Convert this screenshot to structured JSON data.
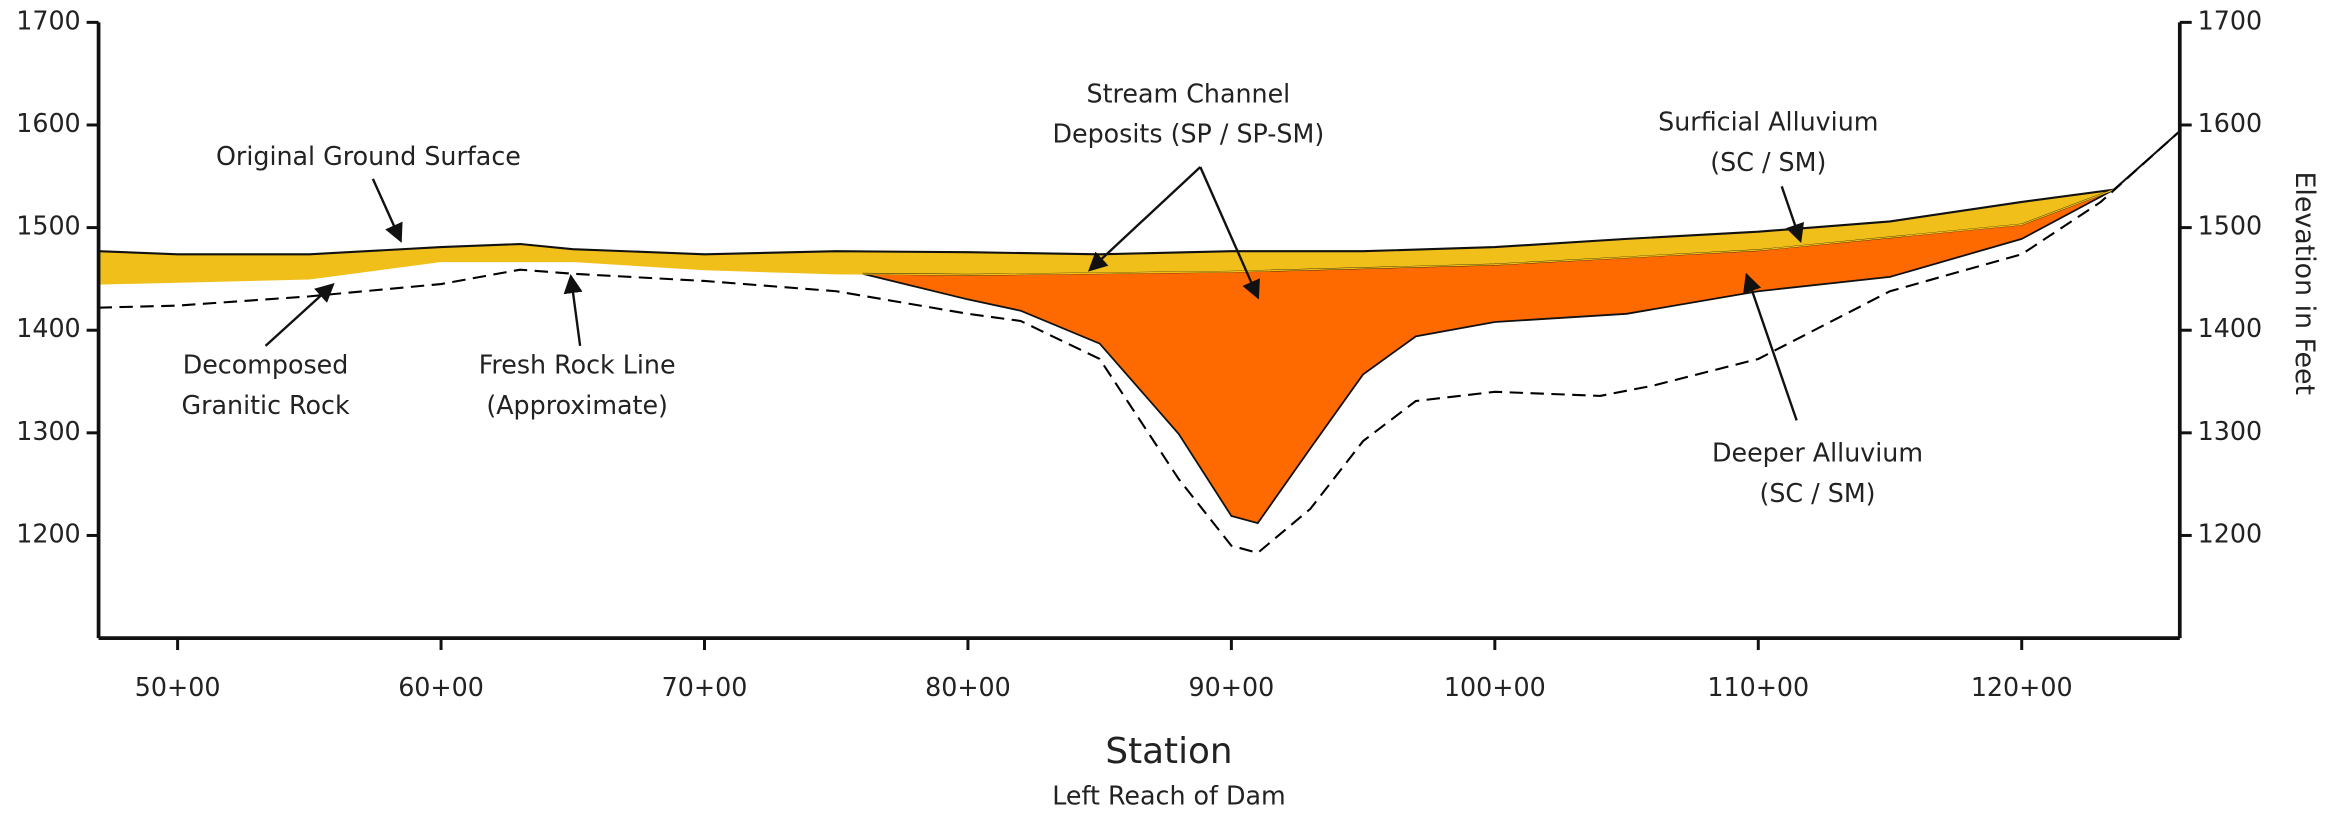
{
  "chart_data": {
    "type": "area",
    "x_label": "Station",
    "x_sublabel": "Left Reach of Dam",
    "y2_label": "Elevation in Feet",
    "xlim": [
      4700,
      12600
    ],
    "xticks": [
      {
        "value": 5000,
        "label": "50+00"
      },
      {
        "value": 6000,
        "label": "60+00"
      },
      {
        "value": 7000,
        "label": "70+00"
      },
      {
        "value": 8000,
        "label": "80+00"
      },
      {
        "value": 9000,
        "label": "90+00"
      },
      {
        "value": 10000,
        "label": "100+00"
      },
      {
        "value": 11000,
        "label": "110+00"
      },
      {
        "value": 12000,
        "label": "120+00"
      }
    ],
    "ylim": [
      1100,
      1700
    ],
    "yticks": [
      1200,
      1300,
      1400,
      1500,
      1600,
      1700
    ],
    "y2lim": [
      1100,
      1700
    ],
    "y2ticks": [
      1200,
      1300,
      1400,
      1500,
      1600,
      1700
    ],
    "series": [
      {
        "color": "#f0bf1a",
        "x": [
          4700,
          5000,
          5500,
          6000,
          6300,
          6500,
          7000,
          7500,
          8000,
          8500,
          9000,
          9500,
          10000,
          10500,
          11000,
          11500,
          12000,
          12350,
          12600
        ],
        "values": [
          1477,
          1474,
          1474,
          1481,
          1484,
          1479,
          1474,
          1477,
          1476,
          1474,
          1477,
          1477,
          1481,
          1489,
          1496,
          1506,
          1525,
          1537,
          1594
        ]
      },
      {
        "color": "#f0bf1a",
        "x": [
          4700,
          5500,
          6000,
          6500,
          7000,
          7500,
          8000,
          9000,
          10000,
          11000,
          12000,
          12350
        ],
        "values": [
          1445,
          1450,
          1467,
          1467,
          1459,
          1455,
          1454,
          1457,
          1464,
          1478,
          1503,
          1537
        ]
      },
      {
        "color": "#ff6a00",
        "x": [
          7600,
          8000,
          8200,
          8500,
          8800,
          9000,
          9100,
          9300,
          9500,
          9700,
          10000,
          10500,
          11000,
          11500,
          12000,
          12350
        ],
        "values": [
          1455,
          1430,
          1419,
          1387,
          1299,
          1219,
          1212,
          1285,
          1357,
          1394,
          1408,
          1416,
          1438,
          1452,
          1489,
          1537
        ]
      },
      {
        "color": "#000000",
        "x": [
          4700,
          5000,
          5500,
          6000,
          6300,
          6500,
          7000,
          7500,
          8000,
          8200,
          8500,
          8800,
          9000,
          9100,
          9300,
          9500,
          9700,
          10000,
          10400,
          10600,
          11000,
          11500,
          12000,
          12300,
          12600
        ],
        "values": [
          1422,
          1424,
          1433,
          1445,
          1459,
          1455,
          1448,
          1438,
          1416,
          1409,
          1372,
          1255,
          1190,
          1183,
          1226,
          1292,
          1331,
          1340,
          1336,
          1346,
          1372,
          1438,
          1474,
          1525,
          1594
        ]
      }
    ],
    "annotations": [
      [
        "Original Ground Surface"
      ],
      [
        "Decomposed",
        "Granitic Rock"
      ],
      [
        "Fresh Rock Line",
        "(Approximate)"
      ],
      [
        "Stream Channel",
        "Deposits (SP / SP-SM)"
      ],
      [
        "Surficial Alluvium",
        "(SC / SM)"
      ],
      [
        "Deeper Alluvium",
        "(SC / SM)"
      ]
    ]
  }
}
